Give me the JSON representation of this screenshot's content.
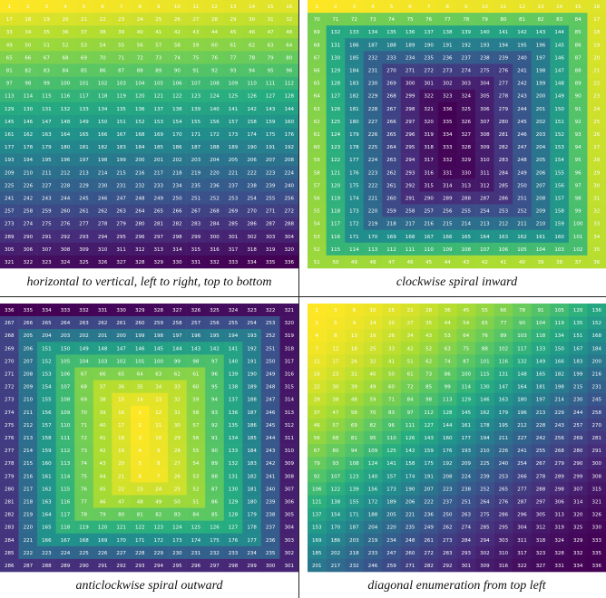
{
  "panels": [
    {
      "id": "horizontal",
      "caption": "horizontal to vertical, left to right, top to bottom"
    },
    {
      "id": "spiral_in",
      "caption": "clockwise spiral inward"
    },
    {
      "id": "spiral_out",
      "caption": "anticlockwise spiral outward"
    },
    {
      "id": "diagonal",
      "caption": "diagonal enumeration from top left"
    }
  ],
  "grid": {
    "cols": 16,
    "rows": 21
  },
  "colormap": "viridis",
  "colors": {
    "divider": "#222222",
    "caption_text": "#111111"
  }
}
